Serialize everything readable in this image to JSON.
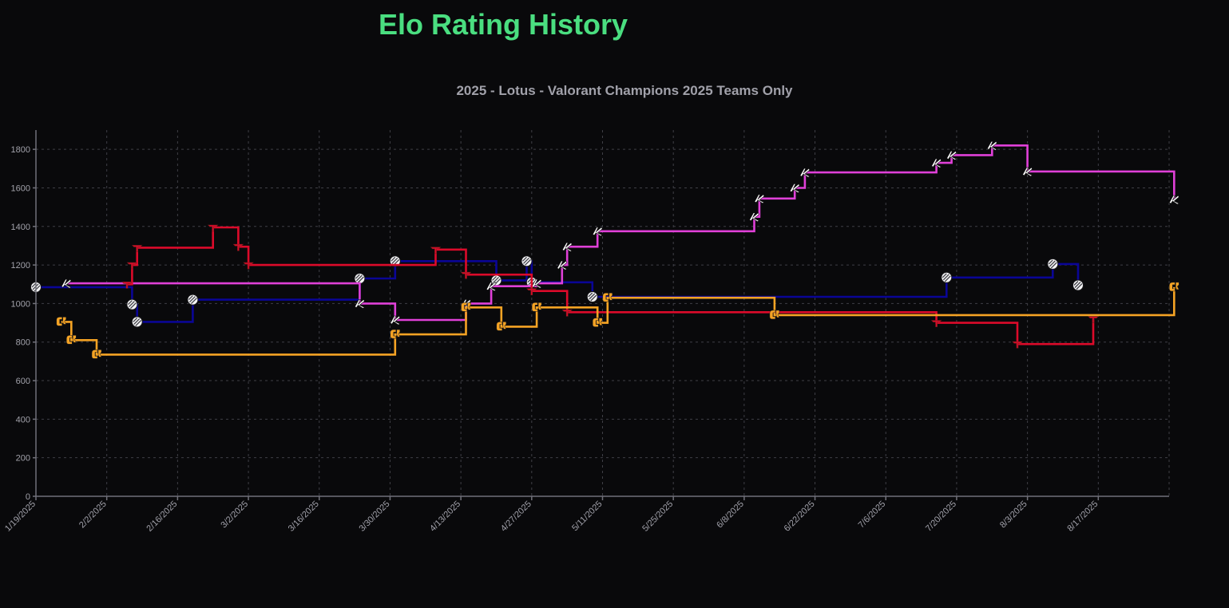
{
  "page": {
    "title": "Elo Rating History"
  },
  "chart_data": {
    "type": "line",
    "title": "2025 - Lotus - Valorant Champions 2025 Teams Only",
    "xlabel": "",
    "ylabel": "",
    "x_ticks": [
      "1/19/2025",
      "2/2/2025",
      "2/16/2025",
      "3/2/2025",
      "3/16/2025",
      "3/30/2025",
      "4/13/2025",
      "4/27/2025",
      "5/11/2025",
      "5/25/2025",
      "6/8/2025",
      "6/22/2025",
      "7/6/2025",
      "7/20/2025",
      "8/3/2025",
      "8/17/2025"
    ],
    "xlim": [
      "2025-01-19",
      "2025-08-31"
    ],
    "ylim": [
      0,
      1900
    ],
    "y_ticks": [
      0,
      200,
      400,
      600,
      800,
      1000,
      1200,
      1400,
      1600,
      1800
    ],
    "grid": true,
    "step": "post",
    "legend": false,
    "series": [
      {
        "color": "#0a0596",
        "icon": "white-round-team-logo",
        "points": [
          [
            "2025-01-19",
            1085
          ],
          [
            "2025-02-07",
            995
          ],
          [
            "2025-02-08",
            905
          ],
          [
            "2025-02-19",
            1020
          ],
          [
            "2025-03-24",
            1130
          ],
          [
            "2025-03-31",
            1220
          ],
          [
            "2025-04-20",
            1120
          ],
          [
            "2025-04-26",
            1220
          ],
          [
            "2025-04-27",
            1110
          ],
          [
            "2025-05-09",
            1035
          ],
          [
            "2025-07-18",
            1135
          ],
          [
            "2025-08-08",
            1205
          ],
          [
            "2025-08-13",
            1095
          ]
        ]
      },
      {
        "color": "#e040d8",
        "icon": "white-script-team-logo",
        "points": [
          [
            "2025-01-25",
            1105
          ],
          [
            "2025-03-24",
            1000
          ],
          [
            "2025-03-31",
            915
          ],
          [
            "2025-04-14",
            1000
          ],
          [
            "2025-04-19",
            1090
          ],
          [
            "2025-04-28",
            1105
          ],
          [
            "2025-05-03",
            1200
          ],
          [
            "2025-05-04",
            1295
          ],
          [
            "2025-05-10",
            1375
          ],
          [
            "2025-06-10",
            1450
          ],
          [
            "2025-06-11",
            1545
          ],
          [
            "2025-06-18",
            1600
          ],
          [
            "2025-06-20",
            1680
          ],
          [
            "2025-07-16",
            1730
          ],
          [
            "2025-07-19",
            1770
          ],
          [
            "2025-07-27",
            1820
          ],
          [
            "2025-08-03",
            1685
          ],
          [
            "2025-09-01",
            1540
          ]
        ]
      },
      {
        "color": "#dc0a2a",
        "icon": "red-arrow-team-logo",
        "points": [
          [
            "2025-02-06",
            1100
          ],
          [
            "2025-02-07",
            1200
          ],
          [
            "2025-02-08",
            1290
          ],
          [
            "2025-02-23",
            1395
          ],
          [
            "2025-02-28",
            1295
          ],
          [
            "2025-03-02",
            1200
          ],
          [
            "2025-04-08",
            1280
          ],
          [
            "2025-04-14",
            1150
          ],
          [
            "2025-04-27",
            1065
          ],
          [
            "2025-05-04",
            955
          ],
          [
            "2025-07-16",
            900
          ],
          [
            "2025-08-01",
            790
          ],
          [
            "2025-08-16",
            920
          ]
        ]
      },
      {
        "color": "#f5a324",
        "icon": "orange-team-logo",
        "points": [
          [
            "2025-01-24",
            905
          ],
          [
            "2025-01-26",
            810
          ],
          [
            "2025-01-31",
            735
          ],
          [
            "2025-03-31",
            840
          ],
          [
            "2025-04-14",
            980
          ],
          [
            "2025-04-21",
            880
          ],
          [
            "2025-04-28",
            980
          ],
          [
            "2025-05-10",
            900
          ],
          [
            "2025-05-12",
            1030
          ],
          [
            "2025-06-14",
            940
          ],
          [
            "2025-09-01",
            1085
          ]
        ]
      }
    ]
  }
}
